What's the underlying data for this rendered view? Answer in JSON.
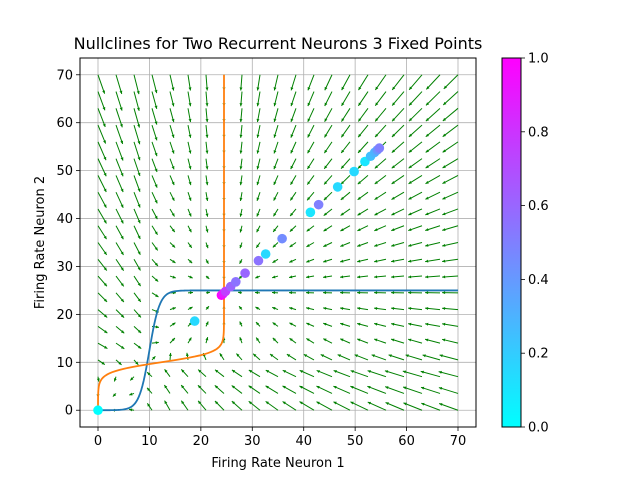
{
  "chart_data": {
    "type": "scatter",
    "title": "Nullclines for Two Recurrent Neurons 3 Fixed Points",
    "xlabel": "Firing Rate Neuron 1",
    "ylabel": "Firing Rate Neuron 2",
    "xlim": [
      -3.5,
      73.5
    ],
    "ylim": [
      -3.5,
      73.5
    ],
    "x_ticks": [
      0,
      10,
      20,
      30,
      40,
      50,
      60,
      70
    ],
    "y_ticks": [
      0,
      10,
      20,
      30,
      40,
      50,
      60,
      70
    ],
    "grid": true,
    "nullcline_colors": [
      "#1f77b4",
      "#ff7f0e"
    ],
    "quiver_color": "#008000",
    "colormap": "cool",
    "colorbar": {
      "range": [
        0.0,
        1.0
      ],
      "ticks": [
        "0.0",
        "0.2",
        "0.4",
        "0.6",
        "0.8",
        "1.0"
      ],
      "tick_values": [
        0.0,
        0.2,
        0.4,
        0.6,
        0.8,
        1.0
      ]
    },
    "trajectory_points": [
      {
        "x": 0,
        "y": 0,
        "c": 0.0
      },
      {
        "x": 18.8,
        "y": 18.6,
        "c": 0.15
      },
      {
        "x": 24.0,
        "y": 24.0,
        "c": 1.0
      },
      {
        "x": 24.3,
        "y": 24.3,
        "c": 0.9
      },
      {
        "x": 24.8,
        "y": 24.8,
        "c": 0.75
      },
      {
        "x": 25.8,
        "y": 25.8,
        "c": 0.6
      },
      {
        "x": 26.8,
        "y": 26.8,
        "c": 0.55
      },
      {
        "x": 28.6,
        "y": 28.6,
        "c": 0.6
      },
      {
        "x": 31.2,
        "y": 31.2,
        "c": 0.55
      },
      {
        "x": 32.6,
        "y": 32.6,
        "c": 0.15
      },
      {
        "x": 35.8,
        "y": 35.8,
        "c": 0.45
      },
      {
        "x": 41.3,
        "y": 41.3,
        "c": 0.1
      },
      {
        "x": 42.9,
        "y": 42.9,
        "c": 0.5
      },
      {
        "x": 46.6,
        "y": 46.6,
        "c": 0.15
      },
      {
        "x": 49.8,
        "y": 49.8,
        "c": 0.15
      },
      {
        "x": 51.9,
        "y": 51.9,
        "c": 0.1
      },
      {
        "x": 53.0,
        "y": 53.0,
        "c": 0.25
      },
      {
        "x": 53.8,
        "y": 53.8,
        "c": 0.3
      },
      {
        "x": 54.3,
        "y": 54.3,
        "c": 0.4
      },
      {
        "x": 54.7,
        "y": 54.7,
        "c": 0.5
      }
    ]
  }
}
